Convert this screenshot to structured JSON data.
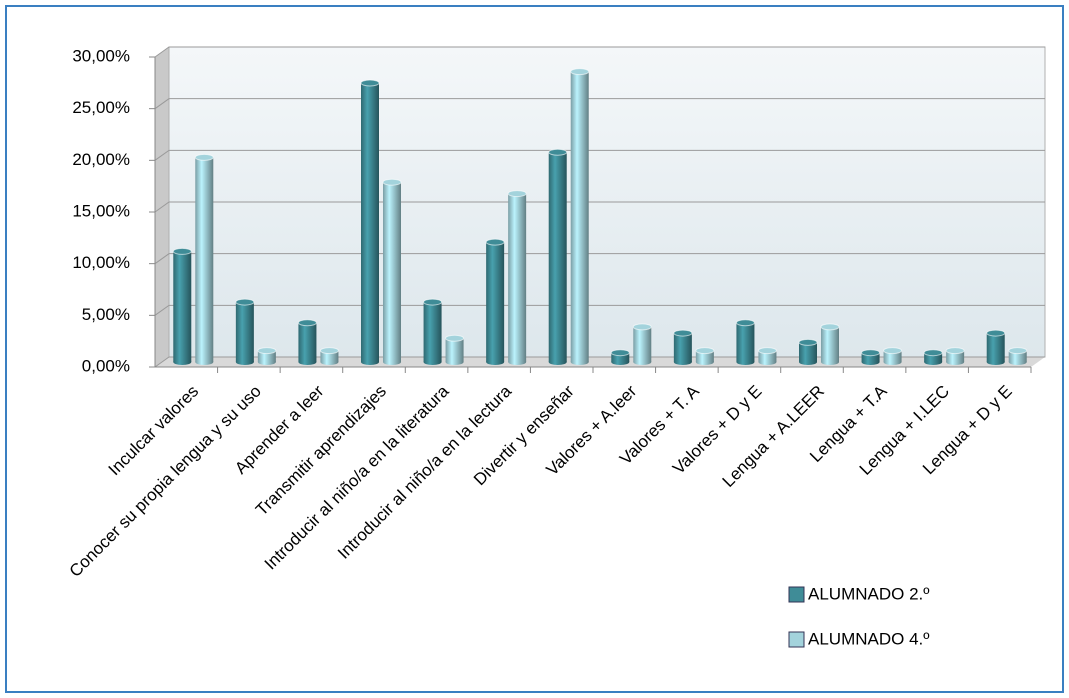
{
  "chart_data": {
    "type": "bar",
    "categories": [
      "Inculcar valores",
      "Conocer su propia lengua y su uso",
      "Aprender a leer",
      "Transmitir aprendizajes",
      "Introducir al niño/a en la literatura",
      "Introducir al niño/a en la lectura",
      "Divertir y enseñar",
      "Valores + A.leer",
      "Valores + T. A",
      "Valores + D y E",
      "Lengua + A.LEER",
      "Lengua + T.A",
      "Lengua + I.LEC",
      "Lengua + D y E"
    ],
    "series": [
      {
        "name": "ALUMNADO 2.º",
        "color": "#3f8c97",
        "values": [
          10.7,
          5.8,
          3.8,
          27.0,
          5.8,
          11.6,
          20.3,
          0.9,
          2.8,
          3.8,
          1.9,
          0.9,
          0.9,
          2.8
        ]
      },
      {
        "name": "ALUMNADO 4.º",
        "color": "#a3d3dc",
        "values": [
          19.8,
          1.1,
          1.1,
          17.4,
          2.3,
          16.3,
          28.1,
          3.4,
          1.1,
          1.1,
          3.4,
          1.1,
          1.1,
          1.1
        ]
      }
    ],
    "ylim": [
      0,
      30
    ],
    "yticks": [
      {
        "value": 0,
        "label": "0,00%"
      },
      {
        "value": 5,
        "label": "5,00%"
      },
      {
        "value": 10,
        "label": "10,00%"
      },
      {
        "value": 15,
        "label": "15,00%"
      },
      {
        "value": 20,
        "label": "20,00%"
      },
      {
        "value": 25,
        "label": "25,00%"
      },
      {
        "value": 30,
        "label": "30,00%"
      }
    ],
    "grid": true
  }
}
